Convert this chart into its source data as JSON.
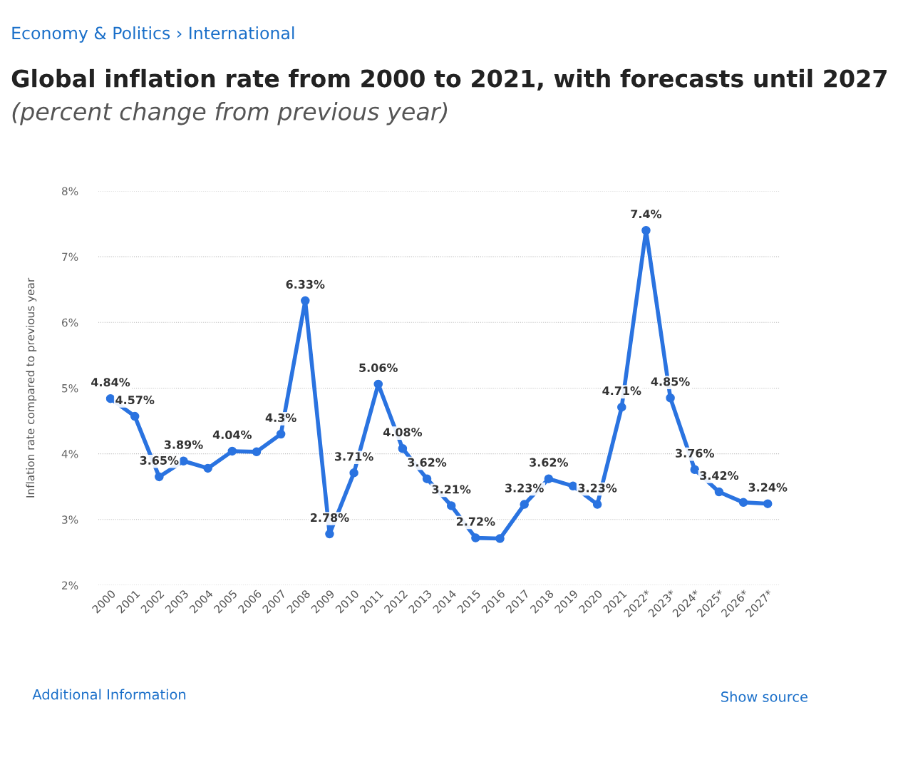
{
  "chart_data": {
    "type": "line",
    "title": "Global inflation rate from 2000 to 2021, with forecasts until 2027",
    "subtitle": "(percent change from previous year)",
    "ylabel": "Inflation rate compared to previous year",
    "categories": [
      "2000",
      "2001",
      "2002",
      "2003",
      "2004",
      "2005",
      "2006",
      "2007",
      "2008",
      "2009",
      "2010",
      "2011",
      "2012",
      "2013",
      "2014",
      "2015",
      "2016",
      "2017",
      "2018",
      "2019",
      "2020",
      "2021",
      "2022*",
      "2023*",
      "2024*",
      "2025*",
      "2026*",
      "2027*"
    ],
    "series": [
      {
        "color": "#2a73e0",
        "values": [
          4.84,
          4.57,
          3.65,
          3.89,
          3.78,
          4.04,
          4.03,
          4.3,
          6.33,
          2.78,
          3.71,
          5.06,
          4.08,
          3.62,
          3.21,
          2.72,
          2.71,
          3.23,
          3.62,
          3.51,
          3.23,
          4.71,
          7.4,
          4.85,
          3.76,
          3.42,
          3.26,
          3.24
        ],
        "value_labels": [
          "4.84%",
          "4.57%",
          "3.65%",
          "3.89%",
          null,
          "4.04%",
          null,
          "4.3%",
          "6.33%",
          "2.78%",
          "3.71%",
          "5.06%",
          "4.08%",
          "3.62%",
          "3.21%",
          "2.72%",
          null,
          "3.23%",
          "3.62%",
          null,
          "3.23%",
          "4.71%",
          "7.4%",
          "4.85%",
          "3.76%",
          "3.42%",
          null,
          "3.24%"
        ]
      }
    ],
    "ylim": [
      2,
      8
    ],
    "yticks": [
      {
        "value": 2,
        "label": "2%"
      },
      {
        "value": 3,
        "label": "3%"
      },
      {
        "value": 4,
        "label": "4%"
      },
      {
        "value": 5,
        "label": "5%"
      },
      {
        "value": 6,
        "label": "6%"
      },
      {
        "value": 7,
        "label": "7%"
      },
      {
        "value": 8,
        "label": "8%"
      }
    ],
    "grid": "y",
    "marker": "circle",
    "line_style": "solid",
    "legend": false,
    "annotations": [
      "Economy & Politics › International",
      "Additional Information",
      "Show source"
    ]
  }
}
